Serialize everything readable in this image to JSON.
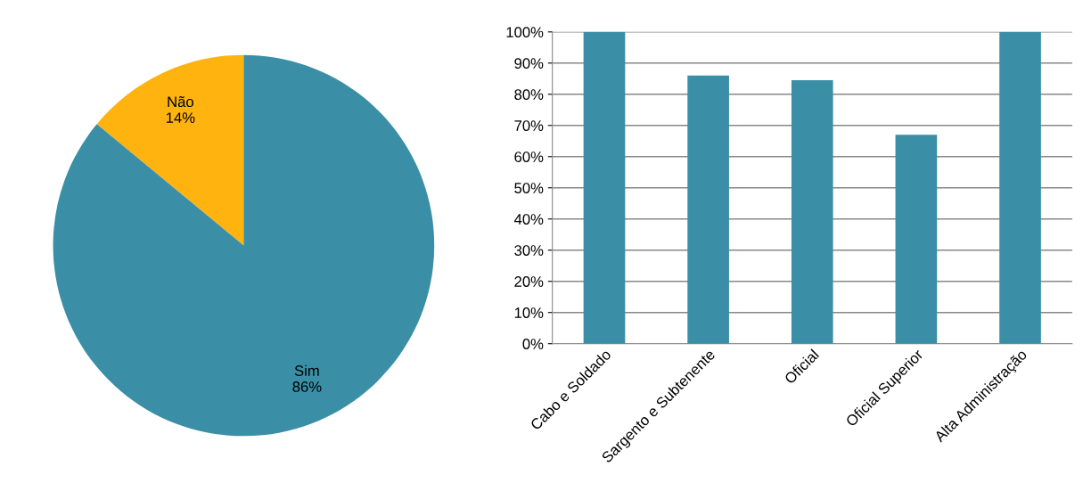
{
  "chart_data": [
    {
      "type": "pie",
      "categories": [
        "Não",
        "Sim"
      ],
      "values": [
        14,
        86
      ],
      "colors": [
        "#ffb30f",
        "#3a8fa6"
      ],
      "value_labels": [
        "14%",
        "86%"
      ]
    },
    {
      "type": "bar",
      "categories": [
        "Cabo e Soldado",
        "Sargento e Subtenente",
        "Oficial",
        "Oficial Superior",
        "Alta Administração"
      ],
      "values": [
        100,
        86,
        84.5,
        67,
        100
      ],
      "color": "#3a8fa6",
      "ylim": [
        0,
        100
      ],
      "yticks": [
        {
          "value": 0,
          "label": "0%"
        },
        {
          "value": 10,
          "label": "10%"
        },
        {
          "value": 20,
          "label": "20%"
        },
        {
          "value": 30,
          "label": "30%"
        },
        {
          "value": 40,
          "label": "40%"
        },
        {
          "value": 50,
          "label": "50%"
        },
        {
          "value": 60,
          "label": "60%"
        },
        {
          "value": 70,
          "label": "70%"
        },
        {
          "value": 80,
          "label": "80%"
        },
        {
          "value": 90,
          "label": "90%"
        },
        {
          "value": 100,
          "label": "100%"
        }
      ],
      "grid": "y"
    }
  ]
}
